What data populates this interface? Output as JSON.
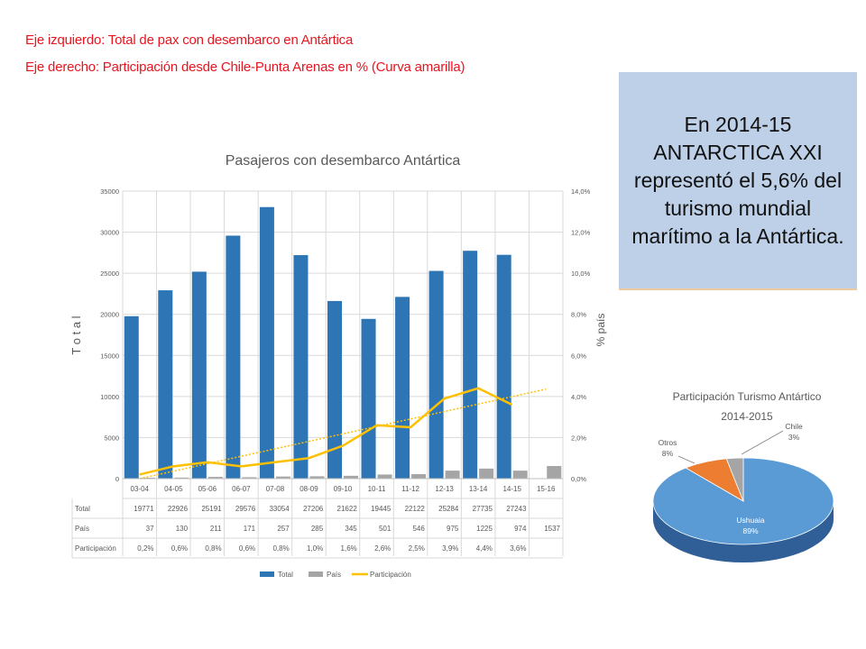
{
  "header": {
    "line1": "Eje izquierdo: Total de pax con desembarco en Antártica ",
    "line2": "Eje derecho: Participación desde Chile-Punta Arenas en % (Curva amarilla) "
  },
  "callout": {
    "text": "En 2014-15 ANTARCTICA XXI representó el 5,6% del turismo mundial marítimo a la Antártica."
  },
  "colors": {
    "total": "#2e75b6",
    "pais": "#a5a5a5",
    "participacion": "#ffc000",
    "header": "#e8141e",
    "callout_bg": "#bdd0e8"
  },
  "chart_data": [
    {
      "type": "bar",
      "title": "Pasajeros con desembarco Antártica ",
      "ylabel": "T o t a l ",
      "y2label": "% país ",
      "ylim": [
        0,
        35000
      ],
      "y2lim": [
        0,
        0.14
      ],
      "yticks": [
        "0 ",
        "5000 ",
        "10000 ",
        "15000 ",
        "20000 ",
        "25000 ",
        "30000 ",
        "35000 "
      ],
      "y2ticks": [
        "0,0% ",
        "2,0% ",
        "4,0% ",
        "6,0% ",
        "8,0% ",
        "10,0% ",
        "12,0% ",
        "14,0% "
      ],
      "categories": [
        " 03-04 ",
        " 04-05 ",
        " 05-06 ",
        " 06-07 ",
        " 07-08 ",
        " 08-09 ",
        " 09-10 ",
        " 10-11 ",
        " 11-12 ",
        " 12-13 ",
        " 13-14 ",
        " 14-15 ",
        " 15-16 "
      ],
      "series": [
        {
          "name": "Total ",
          "values": [
            19771,
            22926,
            25191,
            29576,
            33054,
            27206,
            21622,
            19445,
            22122,
            25284,
            27735,
            27243,
            null
          ],
          "color": "#2e75b6"
        },
        {
          "name": "País ",
          "values": [
            37,
            130,
            211,
            171,
            257,
            285,
            345,
            501,
            546,
            975,
            1225,
            974,
            1537
          ],
          "color": "#a5a5a5"
        },
        {
          "name": "Participación ",
          "values": [
            0.002,
            0.006,
            0.008,
            0.006,
            0.008,
            0.01,
            0.016,
            0.026,
            0.025,
            0.039,
            0.044,
            0.036,
            null
          ],
          "color": "#ffc000",
          "axis": "right",
          "trendline": true
        }
      ],
      "table": {
        "rows": [
          {
            "label": "Total ",
            "cells": [
              "19771 ",
              "22926 ",
              "25191 ",
              "29576 ",
              "33054 ",
              "27206 ",
              "21622 ",
              "19445 ",
              "22122 ",
              "25284 ",
              "27735 ",
              "27243 ",
              ""
            ]
          },
          {
            "label": "País ",
            "cells": [
              "37 ",
              "130 ",
              "211 ",
              "171 ",
              "257 ",
              "285 ",
              "345 ",
              "501 ",
              "546 ",
              "975 ",
              "1225 ",
              "974 ",
              "1537 "
            ]
          },
          {
            "label": "Participación ",
            "cells": [
              "0,2% ",
              "0,6% ",
              "0,8% ",
              "0,6% ",
              "0,8% ",
              "1,0% ",
              "1,6% ",
              "2,6% ",
              "2,5% ",
              "3,9% ",
              "4,4% ",
              "3,6% ",
              ""
            ]
          }
        ]
      },
      "legend": [
        "Total ",
        "País ",
        "Participación "
      ],
      "legend_position": "bottom"
    },
    {
      "type": "pie",
      "title": "Participación Turismo Antártico ",
      "subtitle": "2014-2015 ",
      "slices": [
        {
          "label": "Ushuaia ",
          "value": 0.89,
          "pct": "89% ",
          "color": "#5b9bd5"
        },
        {
          "label": "Otros ",
          "value": 0.08,
          "pct": "8% ",
          "color": "#ed7d31"
        },
        {
          "label": "Chile ",
          "value": 0.03,
          "pct": "3% ",
          "color": "#a5a5a5"
        }
      ]
    }
  ]
}
